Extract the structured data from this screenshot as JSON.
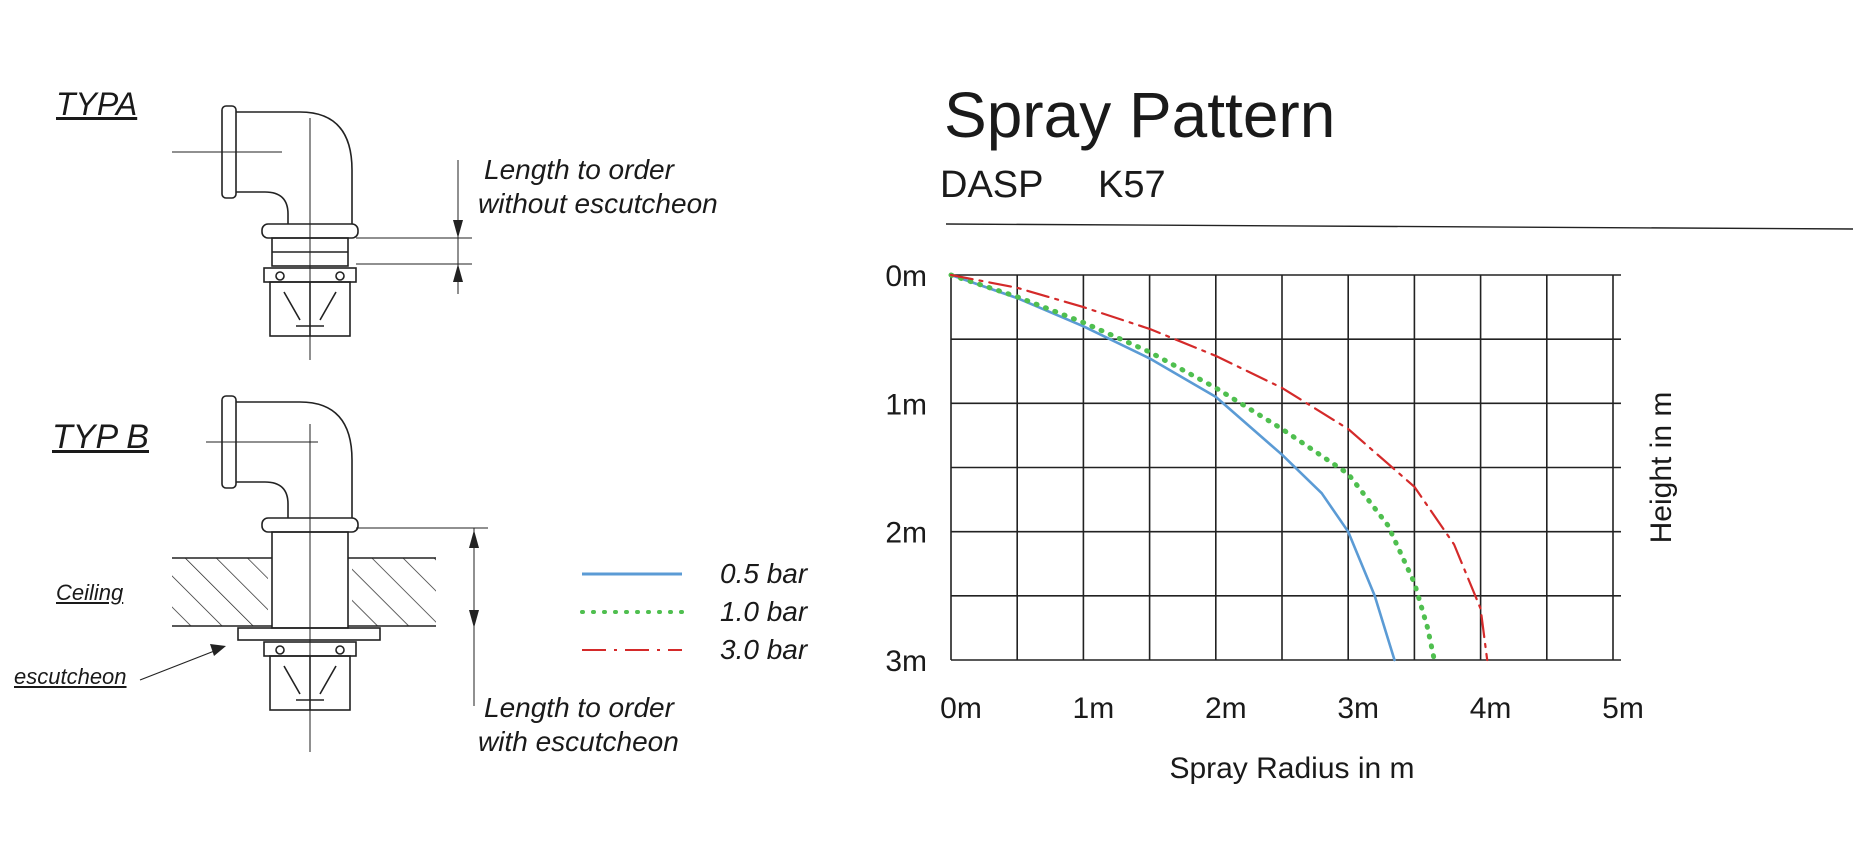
{
  "drawings": {
    "type_a_label": "TYPA",
    "type_b_label": "TYP B",
    "ceiling_label": "Ceiling",
    "escutcheon_label": "escutcheon",
    "length_without": [
      "Length to order",
      "without escutcheon"
    ],
    "length_with": [
      "Length to order",
      "with escutcheon"
    ]
  },
  "legend": [
    {
      "label": "0.5 bar",
      "color": "#5b9bd5",
      "style": "solid"
    },
    {
      "label": "1.0 bar",
      "color": "#4fbf4f",
      "style": "dotted"
    },
    {
      "label": "3.0 bar",
      "color": "#d42a2a",
      "style": "dashdot"
    }
  ],
  "header": {
    "title": "Spray Pattern",
    "model": "DASP",
    "k_factor": "K57"
  },
  "chart_data": {
    "type": "line",
    "title": "Spray Pattern",
    "xlabel": "Spray Radius in m",
    "ylabel": "Height in m",
    "xlim": [
      0,
      5
    ],
    "ylim": [
      0,
      3
    ],
    "y_inverted": true,
    "grid": true,
    "x_ticks": [
      "0m",
      "1m",
      "2m",
      "3m",
      "4m",
      "5m"
    ],
    "y_ticks": [
      "0m",
      "1m",
      "2m",
      "3m"
    ],
    "series": [
      {
        "name": "0.5 bar",
        "color": "#5b9bd5",
        "style": "solid",
        "x": [
          0,
          0.5,
          1.0,
          1.5,
          2.0,
          2.5,
          2.8,
          3.0,
          3.2,
          3.35
        ],
        "y": [
          0,
          0.18,
          0.4,
          0.65,
          0.95,
          1.4,
          1.7,
          2.0,
          2.5,
          3.0
        ]
      },
      {
        "name": "1.0 bar",
        "color": "#4fbf4f",
        "style": "dotted",
        "x": [
          0,
          0.5,
          1.0,
          1.5,
          2.0,
          2.5,
          3.0,
          3.3,
          3.5,
          3.6,
          3.65
        ],
        "y": [
          0,
          0.17,
          0.37,
          0.6,
          0.88,
          1.2,
          1.55,
          1.95,
          2.4,
          2.75,
          3.0
        ]
      },
      {
        "name": "3.0 bar",
        "color": "#d42a2a",
        "style": "dashdot",
        "x": [
          0,
          0.5,
          1.0,
          1.5,
          2.0,
          2.5,
          3.0,
          3.5,
          3.8,
          4.0,
          4.05
        ],
        "y": [
          0,
          0.1,
          0.25,
          0.42,
          0.63,
          0.88,
          1.2,
          1.65,
          2.1,
          2.6,
          3.0
        ]
      }
    ]
  }
}
